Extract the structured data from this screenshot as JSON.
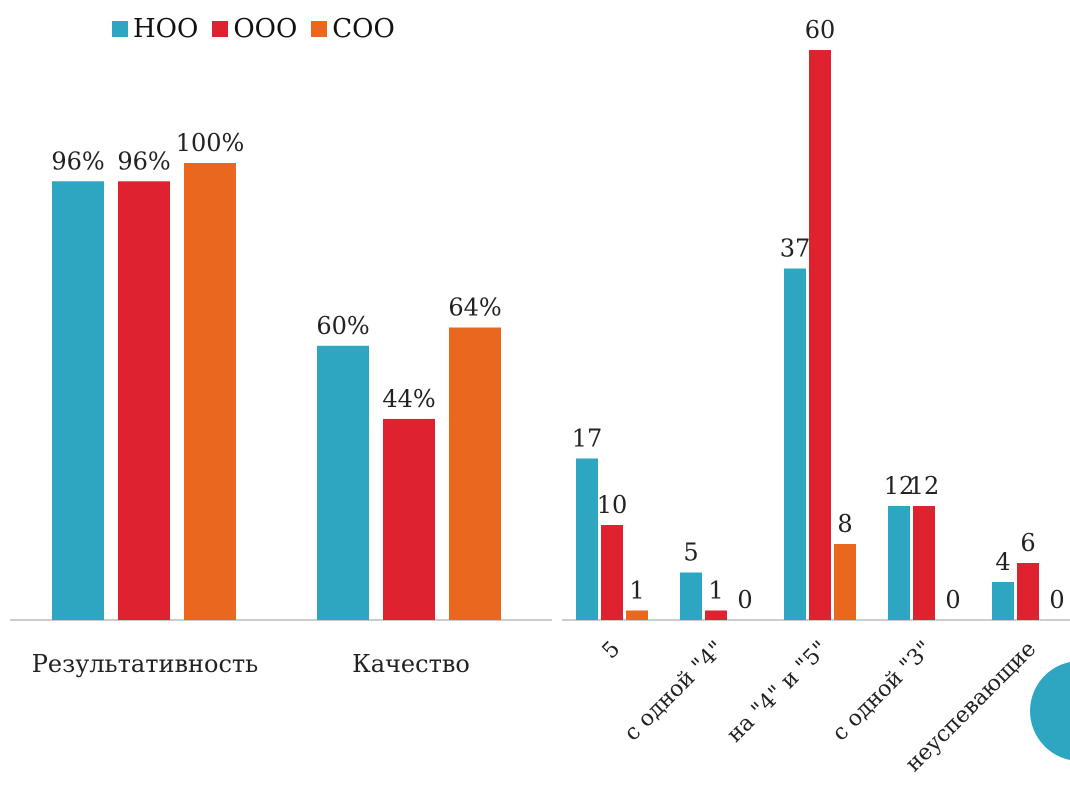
{
  "legend": {
    "items": [
      {
        "label": "НОО",
        "color": "#2ea6c2"
      },
      {
        "label": "ООО",
        "color": "#de2230"
      },
      {
        "label": "СОО",
        "color": "#ea671e"
      }
    ]
  },
  "chart_data": [
    {
      "type": "bar",
      "categories": [
        "Результативность",
        "Качество"
      ],
      "series": [
        {
          "name": "НОО",
          "values": [
            96,
            60
          ],
          "labels": [
            "96%",
            "60%"
          ],
          "color": "#2ea6c2"
        },
        {
          "name": "ООО",
          "values": [
            96,
            44
          ],
          "labels": [
            "96%",
            "44%"
          ],
          "color": "#de2230"
        },
        {
          "name": "СОО",
          "values": [
            100,
            64
          ],
          "labels": [
            "100%",
            "64%"
          ],
          "color": "#ea671e"
        }
      ],
      "ylim": [
        0,
        100
      ],
      "grid": false,
      "legend": "top-left"
    },
    {
      "type": "bar",
      "categories": [
        "5",
        "с одной \"4\"",
        "на \"4\" и \"5\"",
        "с одной \"3\"",
        "неуспевающие"
      ],
      "series": [
        {
          "name": "НОО",
          "values": [
            17,
            5,
            37,
            12,
            4
          ],
          "color": "#2ea6c2"
        },
        {
          "name": "ООО",
          "values": [
            10,
            1,
            60,
            12,
            6
          ],
          "color": "#de2230"
        },
        {
          "name": "СОО",
          "values": [
            1,
            0,
            8,
            0,
            0
          ],
          "color": "#ea671e"
        }
      ],
      "ylim": [
        0,
        60
      ],
      "grid": false
    }
  ],
  "decor": {
    "circle_color": "#2ea6c2"
  }
}
